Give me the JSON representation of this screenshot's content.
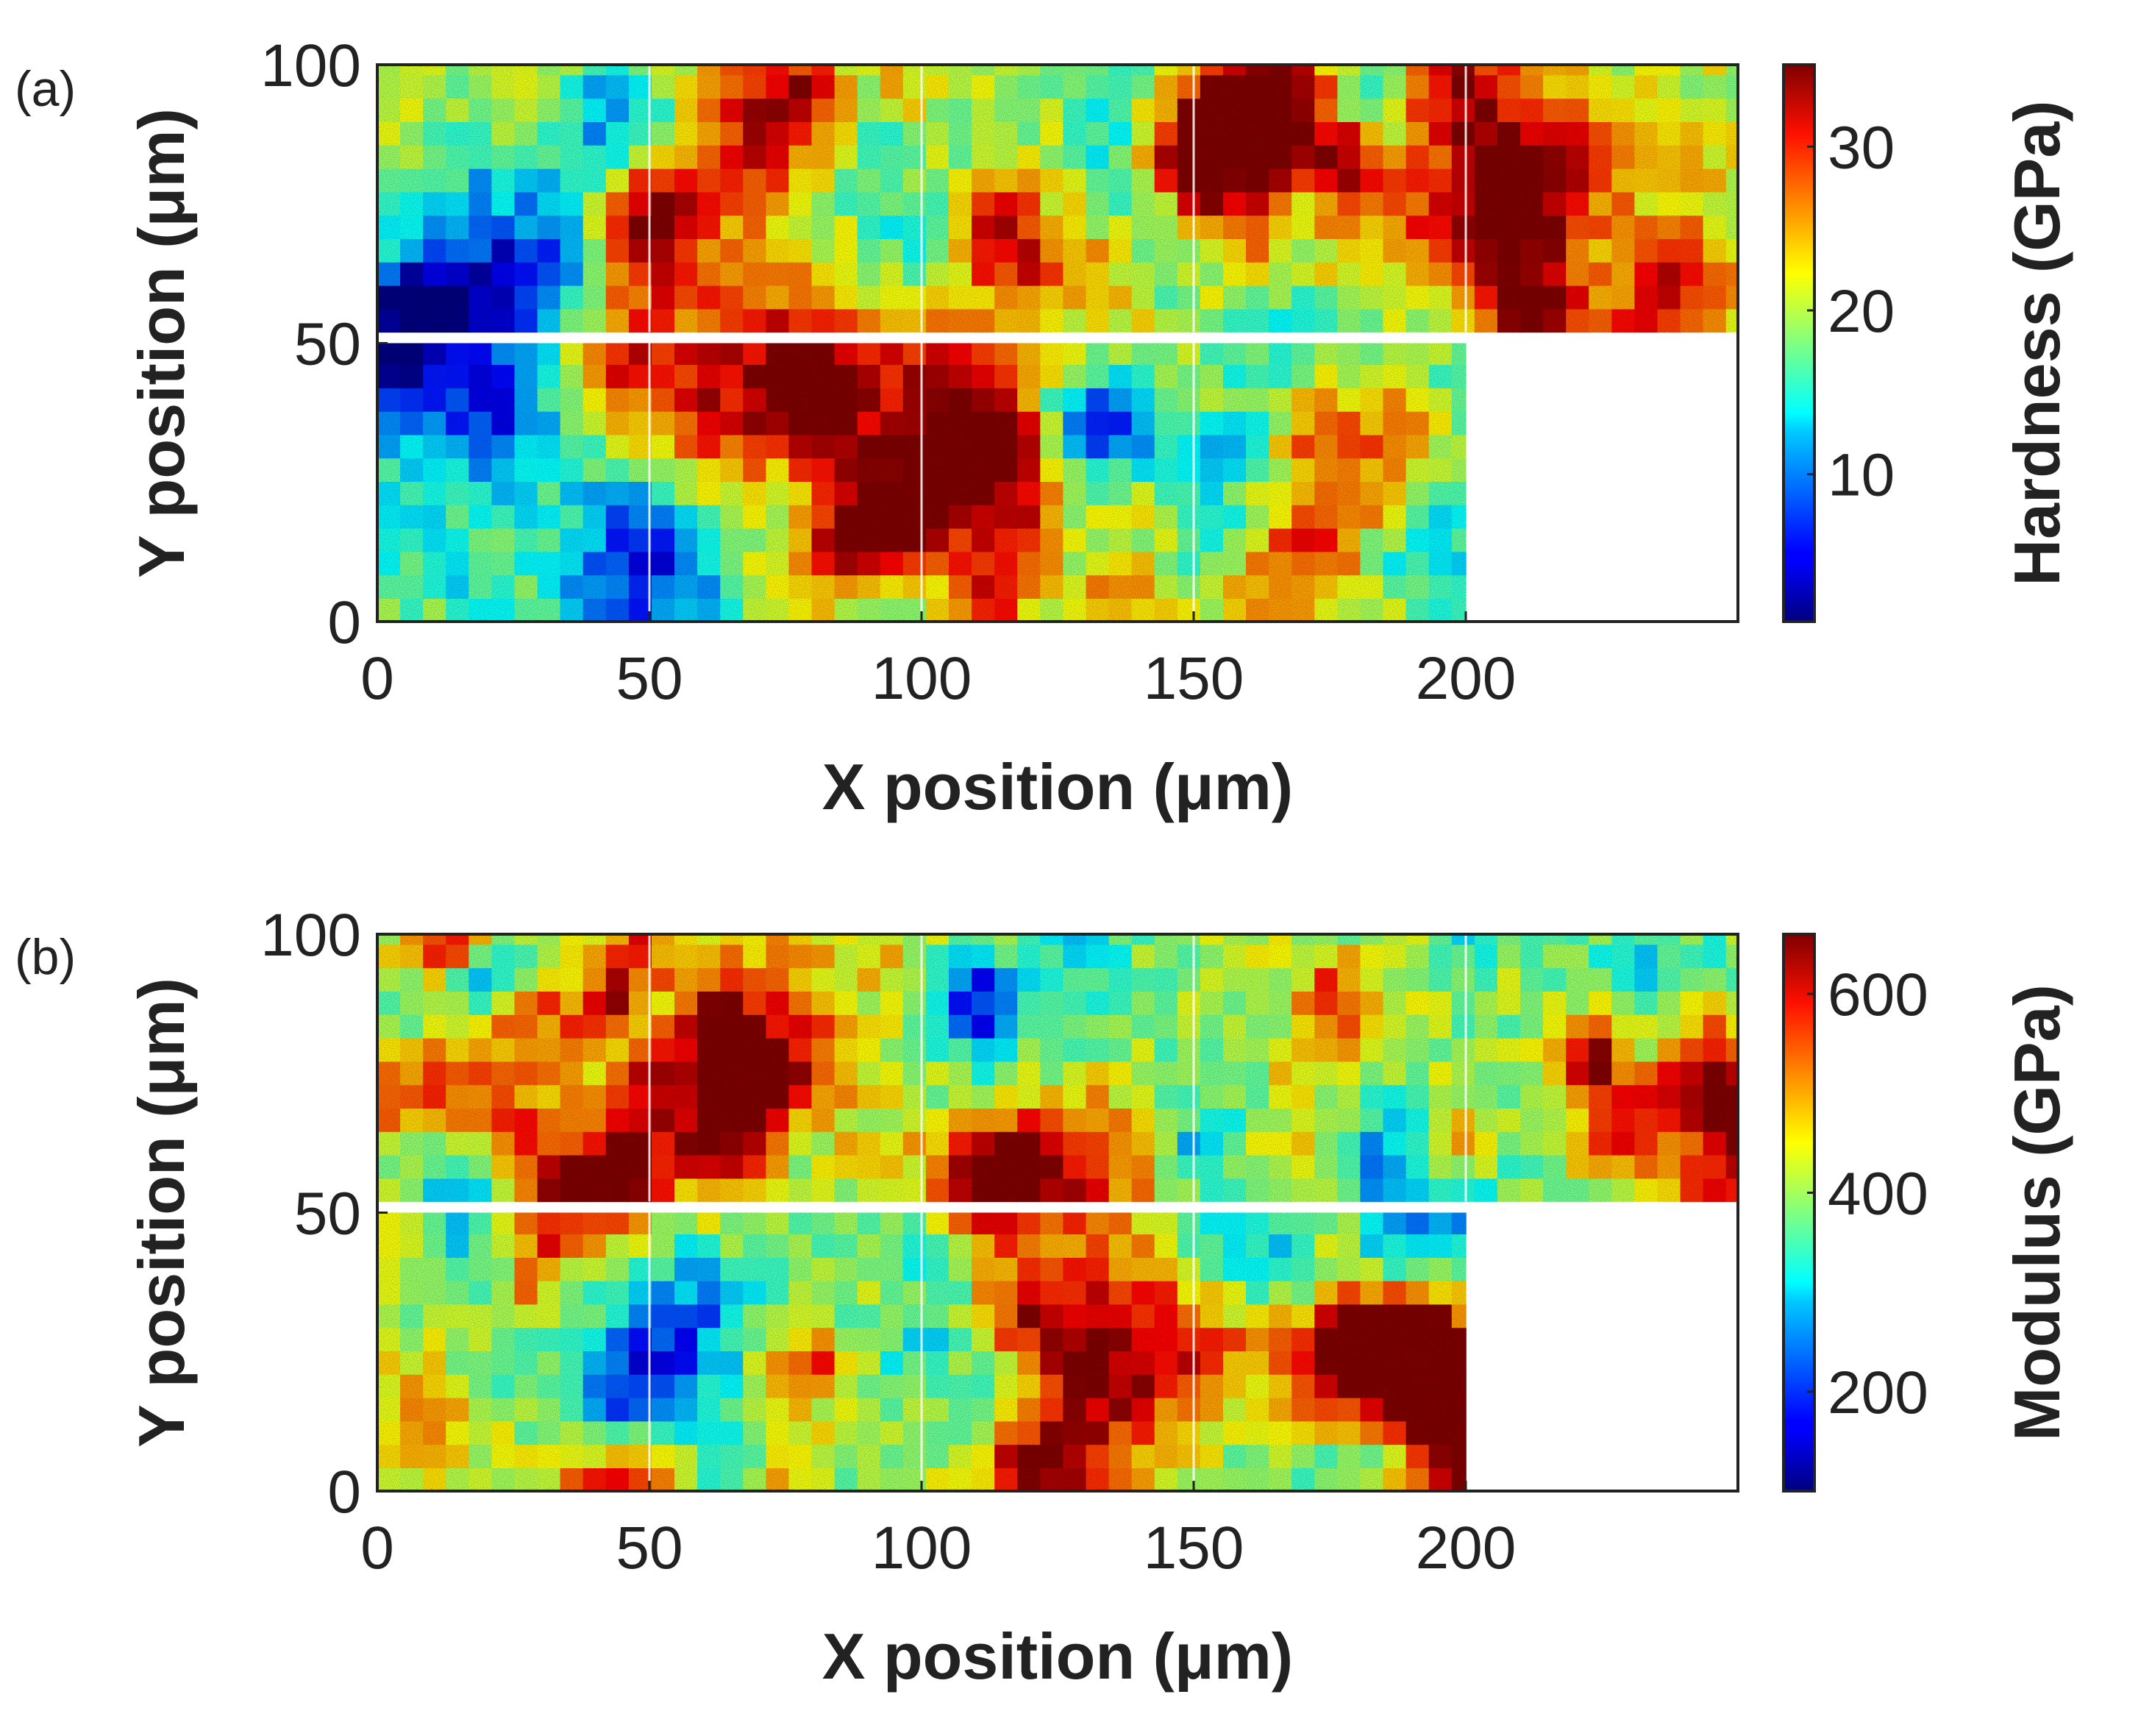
{
  "figure": {
    "panels": [
      "(a)",
      "(b)"
    ]
  },
  "chart_data": [
    {
      "type": "heatmap",
      "panel_label": "(a)",
      "title": "",
      "xlabel": "X position (μm)",
      "ylabel": "Y position (μm)",
      "xlim": [
        0,
        250
      ],
      "ylim": [
        0,
        100
      ],
      "xticks": [
        0,
        50,
        100,
        150,
        200
      ],
      "yticks": [
        0,
        50,
        100
      ],
      "grid": false,
      "colormap": "jet",
      "colorbar": {
        "label": "Hardness (GPa)",
        "range": [
          1,
          35
        ],
        "ticks": [
          10,
          20,
          30
        ]
      },
      "map_regions": [
        {
          "x_range": [
            0,
            250
          ],
          "y_range": [
            52,
            100
          ],
          "note": "upper scan row, five 50 μm tiles"
        },
        {
          "x_range": [
            0,
            200
          ],
          "y_range": [
            0,
            50
          ],
          "note": "lower scan row, four 50 μm tiles"
        }
      ],
      "tile_boundaries_x": [
        50,
        100,
        150,
        200
      ]
    },
    {
      "type": "heatmap",
      "panel_label": "(b)",
      "title": "",
      "xlabel": "X position (μm)",
      "ylabel": "Y position (μm)",
      "xlim": [
        0,
        250
      ],
      "ylim": [
        0,
        100
      ],
      "xticks": [
        0,
        50,
        100,
        150,
        200
      ],
      "yticks": [
        0,
        50,
        100
      ],
      "grid": false,
      "colormap": "jet",
      "colorbar": {
        "label": "Modulus (GPa)",
        "range": [
          100,
          660
        ],
        "ticks": [
          200,
          400,
          600
        ]
      },
      "map_regions": [
        {
          "x_range": [
            0,
            250
          ],
          "y_range": [
            52,
            100
          ],
          "note": "upper scan row, five 50 μm tiles"
        },
        {
          "x_range": [
            0,
            200
          ],
          "y_range": [
            0,
            50
          ],
          "note": "lower scan row, four 50 μm tiles"
        }
      ],
      "tile_boundaries_x": [
        50,
        100,
        150,
        200
      ]
    }
  ]
}
